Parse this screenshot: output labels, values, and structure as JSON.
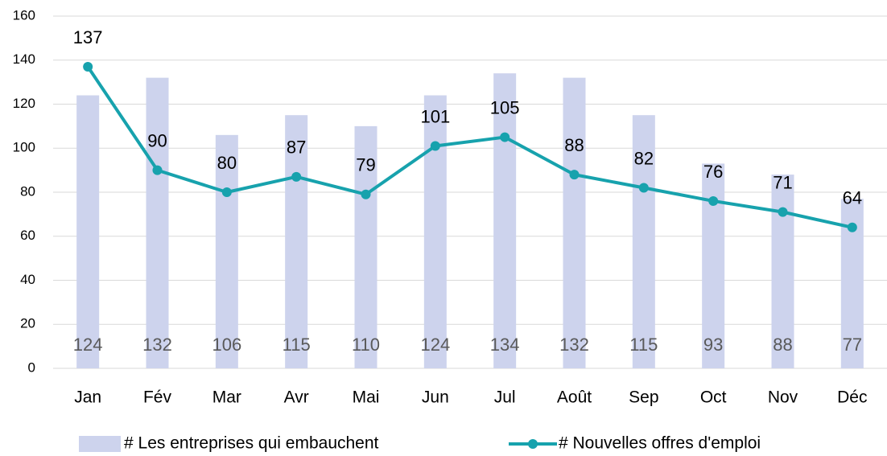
{
  "chart_data": {
    "type": "combo",
    "categories": [
      "Jan",
      "Fév",
      "Mar",
      "Avr",
      "Mai",
      "Jun",
      "Jul",
      "Août",
      "Sep",
      "Oct",
      "Nov",
      "Déc"
    ],
    "series": [
      {
        "name": "# Les entreprises qui embauchent",
        "type": "bar",
        "color": "#cdd3ed",
        "values": [
          124,
          132,
          106,
          115,
          110,
          124,
          134,
          132,
          115,
          93,
          88,
          77
        ]
      },
      {
        "name": "# Nouvelles offres d'emploi",
        "type": "line",
        "color": "#17a2ad",
        "values": [
          137,
          90,
          80,
          87,
          79,
          101,
          105,
          88,
          82,
          76,
          71,
          64
        ]
      }
    ],
    "ylim": [
      0,
      160
    ],
    "yticks": [
      0,
      20,
      40,
      60,
      80,
      100,
      120,
      140,
      160
    ],
    "grid": true,
    "legend": "bottom"
  }
}
